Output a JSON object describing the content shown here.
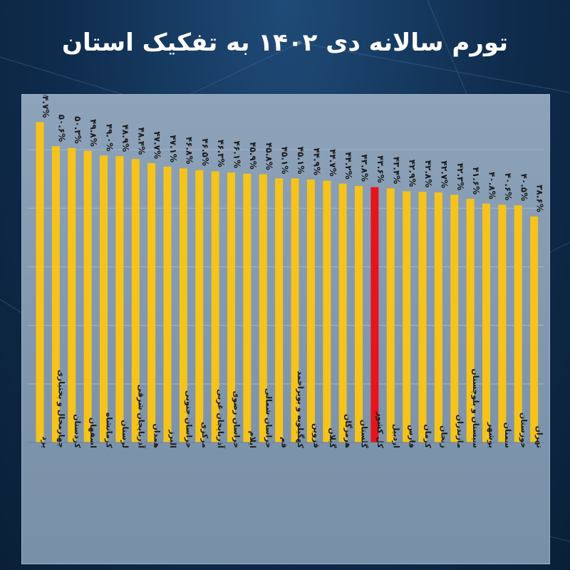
{
  "title": "تورم سالانه دی ۱۴۰۲ به تفکیک استان",
  "colors": {
    "bar": "#f6c31a",
    "highlight": "#e8131b",
    "grid": "#a7b8ca",
    "axis": "#6d8298"
  },
  "chart_data": {
    "type": "bar",
    "title": "تورم سالانه دی ۱۴۰۲ به تفکیک استان",
    "xlabel": "",
    "ylabel": "",
    "ylim": [
      0,
      55
    ],
    "grid": true,
    "highlight_category": "کل کشور",
    "categories": [
      "یزد",
      "چهارمحال و بختیاری",
      "کردستان",
      "اصفهان",
      "کرمانشاه",
      "لرستان",
      "آذربایجان شرقی",
      "همدان",
      "البرز",
      "خراسان جنوبی",
      "مرکزی",
      "آذربایجان غربی",
      "خراسان رضوی",
      "ایلام",
      "خراسان شمالی",
      "قم",
      "کهگیلویه و بویراحمد",
      "قزوین",
      "گیلان",
      "هرمزگان",
      "گلستان",
      "کل کشور",
      "اردبیل",
      "فارس",
      "کرمان",
      "زنجان",
      "مازندران",
      "سیستان و بلوچستان",
      "بوشهر",
      "سمنان",
      "خوزستان",
      "تهران"
    ],
    "values": [
      54.7,
      50.6,
      50.3,
      49.8,
      49.0,
      48.9,
      48.4,
      47.7,
      47.1,
      46.8,
      46.5,
      46.3,
      46.1,
      45.9,
      45.8,
      45.1,
      45.1,
      44.9,
      44.7,
      44.2,
      43.8,
      43.6,
      43.4,
      42.9,
      42.8,
      42.7,
      42.3,
      41.6,
      40.8,
      40.6,
      40.5,
      38.6
    ],
    "labels": [
      "۵۴.۷%",
      "۵۰.۶%",
      "۵۰.۳%",
      "۴۹.۸%",
      "۴۹.۰%",
      "۴۸.۹%",
      "۴۸.۴%",
      "۴۷.۷%",
      "۴۷.۱%",
      "۴۶.۸%",
      "۴۶.۵%",
      "۴۶.۳%",
      "۴۶.۱%",
      "۴۵.۹%",
      "۴۵.۸%",
      "۴۵.۱%",
      "۴۵.۱%",
      "۴۴.۹%",
      "۴۴.۷%",
      "۴۴.۲%",
      "۴۳.۸%",
      "۴۳.۶%",
      "۴۳.۴%",
      "۴۲.۹%",
      "۴۲.۸%",
      "۴۲.۷%",
      "۴۲.۳%",
      "۴۱.۶%",
      "۴۰.۸%",
      "۴۰.۶%",
      "۴۰.۵%",
      "۳۸.۶%"
    ]
  }
}
